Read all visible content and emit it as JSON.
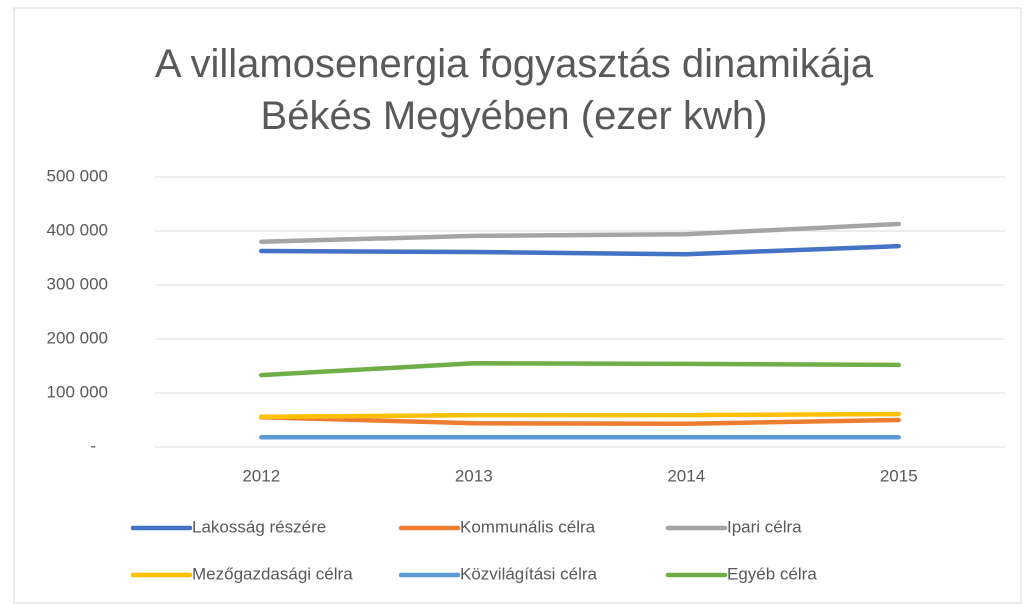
{
  "chart_data": {
    "type": "line",
    "title": "A villamosenergia fogyasztás dinamikája Békés Megyében (ezer kwh)",
    "categories": [
      "2012",
      "2013",
      "2014",
      "2015"
    ],
    "series": [
      {
        "name": "Lakosság részére",
        "color": "#4472c4",
        "values": [
          363000,
          361000,
          357000,
          372000
        ]
      },
      {
        "name": "Kommunális célra",
        "color": "#ed7d31",
        "values": [
          55000,
          44000,
          43000,
          50000
        ]
      },
      {
        "name": "Ipari célra",
        "color": "#a5a5a5",
        "values": [
          380000,
          391000,
          394000,
          413000
        ]
      },
      {
        "name": "Mezőgazdasági célra",
        "color": "#ffc000",
        "values": [
          56000,
          59000,
          59000,
          61000
        ]
      },
      {
        "name": "Közvilágítási célra",
        "color": "#5b9bd5",
        "values": [
          18000,
          18000,
          18000,
          18000
        ]
      },
      {
        "name": "Egyéb célra",
        "color": "#70ad47",
        "values": [
          133000,
          155000,
          154000,
          152000
        ]
      }
    ],
    "ylim": [
      0,
      500000
    ],
    "yticks": [
      {
        "value": 0,
        "label": "-"
      },
      {
        "value": 100000,
        "label": "100 000"
      },
      {
        "value": 200000,
        "label": "200 000"
      },
      {
        "value": 300000,
        "label": "300 000"
      },
      {
        "value": 400000,
        "label": "400 000"
      },
      {
        "value": 500000,
        "label": "500 000"
      }
    ],
    "grid": true,
    "legend": "bottom"
  }
}
